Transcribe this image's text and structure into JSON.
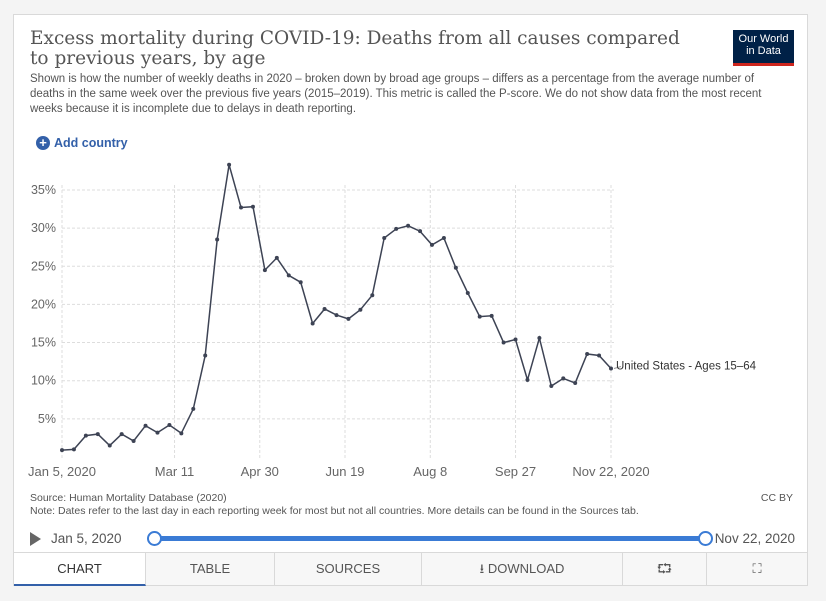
{
  "title": "Excess mortality during COVID-19: Deaths from all causes compared to previous years, by age",
  "subtitle": "Shown is how the number of weekly deaths in 2020 – broken down by broad age groups – differs as a percentage from the average number of deaths in the same week over the previous five years (2015–2019). This metric is called the P-score. We do not show data from the most recent weeks because it is incomplete due to delays in death reporting.",
  "logo": {
    "line1": "Our World",
    "line2": "in Data"
  },
  "add_country": "Add country",
  "source": "Source: Human Mortality Database (2020)",
  "note": "Note: Dates refer to the last day in each reporting week for most but not all countries. More details can be found in the Sources tab.",
  "license": "CC BY",
  "timeline": {
    "start": "Jan 5, 2020",
    "end": "Nov 22, 2020"
  },
  "tabs": [
    "CHART",
    "TABLE",
    "SOURCES",
    "DOWNLOAD"
  ],
  "colors": {
    "line": "#3d4354",
    "accent": "#3360a9",
    "timeline": "#3a7bd5"
  },
  "icons": {
    "share": "share-icon",
    "fullscreen": "fullscreen-icon",
    "download": "download-icon"
  },
  "chart_data": {
    "type": "line",
    "x_tick_labels": [
      "Jan 5, 2020",
      "Mar 11",
      "Apr 30",
      "Jun 19",
      "Aug 8",
      "Sep 27",
      "Nov 22, 2020"
    ],
    "y_tick_labels": [
      "5%",
      "10%",
      "15%",
      "20%",
      "25%",
      "30%",
      "35%"
    ],
    "ylim": [
      0,
      39
    ],
    "grid": "horizontal",
    "series": [
      {
        "name": "United States - Ages 15–64",
        "x": [
          "2020-01-05",
          "2020-01-12",
          "2020-01-19",
          "2020-01-26",
          "2020-02-02",
          "2020-02-09",
          "2020-02-16",
          "2020-02-23",
          "2020-03-01",
          "2020-03-08",
          "2020-03-15",
          "2020-03-22",
          "2020-03-29",
          "2020-04-05",
          "2020-04-12",
          "2020-04-19",
          "2020-04-26",
          "2020-05-03",
          "2020-05-10",
          "2020-05-17",
          "2020-05-24",
          "2020-05-31",
          "2020-06-07",
          "2020-06-14",
          "2020-06-21",
          "2020-06-28",
          "2020-07-05",
          "2020-07-12",
          "2020-07-19",
          "2020-07-26",
          "2020-08-02",
          "2020-08-09",
          "2020-08-16",
          "2020-08-23",
          "2020-08-30",
          "2020-09-06",
          "2020-09-13",
          "2020-09-20",
          "2020-09-27",
          "2020-10-04",
          "2020-10-11",
          "2020-10-18",
          "2020-10-25",
          "2020-11-01",
          "2020-11-08",
          "2020-11-15",
          "2020-11-22"
        ],
        "values": [
          0.9,
          1.0,
          2.8,
          3.0,
          1.5,
          3.0,
          2.1,
          4.1,
          3.2,
          4.2,
          3.1,
          6.3,
          13.3,
          28.5,
          38.3,
          32.7,
          32.8,
          24.5,
          26.1,
          23.8,
          22.9,
          17.5,
          19.4,
          18.6,
          18.1,
          19.3,
          21.2,
          28.7,
          29.9,
          30.3,
          29.6,
          27.8,
          28.7,
          24.8,
          21.5,
          18.4,
          18.5,
          15.0,
          15.4,
          10.1,
          15.6,
          9.3,
          10.3,
          9.7,
          13.5,
          13.3,
          11.6
        ]
      }
    ]
  }
}
